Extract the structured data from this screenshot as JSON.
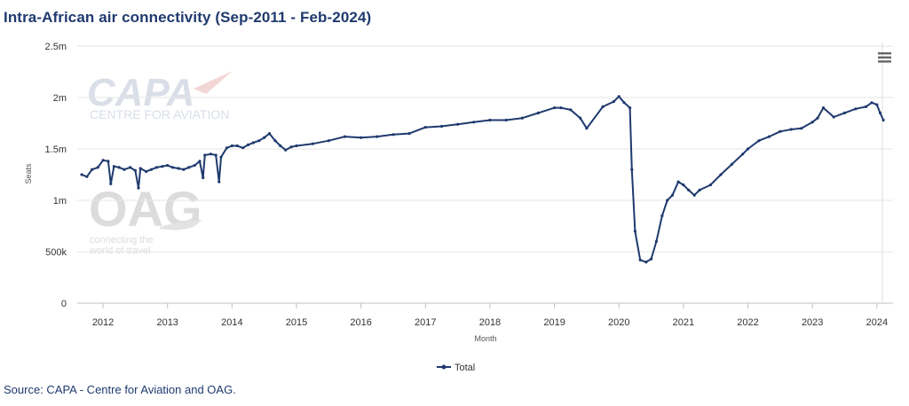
{
  "chart_data": {
    "type": "line",
    "title": "Intra-African air connectivity (Sep-2011 - Feb-2024)",
    "xlabel": "Month",
    "ylabel": "Seats",
    "ylim": [
      0,
      2500000
    ],
    "yticks": [
      {
        "value": 0,
        "label": "0"
      },
      {
        "value": 500000,
        "label": "500k"
      },
      {
        "value": 1000000,
        "label": "1m"
      },
      {
        "value": 1500000,
        "label": "1.5m"
      },
      {
        "value": 2000000,
        "label": "2m"
      },
      {
        "value": 2500000,
        "label": "2.5m"
      }
    ],
    "xlim": [
      2011.6,
      2024.25
    ],
    "xticks": [
      "2012",
      "2013",
      "2014",
      "2015",
      "2016",
      "2017",
      "2018",
      "2019",
      "2020",
      "2021",
      "2022",
      "2023",
      "2024"
    ],
    "grid": true,
    "legend": "bottom-center",
    "series": [
      {
        "name": "Total",
        "color": "#1f3a6e",
        "x": [
          2011.67,
          2011.75,
          2011.83,
          2011.92,
          2012.0,
          2012.08,
          2012.12,
          2012.17,
          2012.25,
          2012.33,
          2012.42,
          2012.5,
          2012.55,
          2012.58,
          2012.67,
          2012.75,
          2012.83,
          2012.92,
          2013.0,
          2013.08,
          2013.17,
          2013.25,
          2013.33,
          2013.42,
          2013.5,
          2013.55,
          2013.58,
          2013.67,
          2013.75,
          2013.8,
          2013.83,
          2013.92,
          2014.0,
          2014.08,
          2014.17,
          2014.25,
          2014.33,
          2014.42,
          2014.5,
          2014.58,
          2014.67,
          2014.75,
          2014.83,
          2014.92,
          2015.0,
          2015.25,
          2015.5,
          2015.75,
          2016.0,
          2016.25,
          2016.5,
          2016.75,
          2017.0,
          2017.25,
          2017.5,
          2017.75,
          2018.0,
          2018.25,
          2018.5,
          2018.75,
          2019.0,
          2019.1,
          2019.25,
          2019.4,
          2019.5,
          2019.75,
          2019.92,
          2020.0,
          2020.08,
          2020.17,
          2020.2,
          2020.25,
          2020.33,
          2020.42,
          2020.5,
          2020.58,
          2020.67,
          2020.75,
          2020.83,
          2020.92,
          2021.0,
          2021.08,
          2021.17,
          2021.25,
          2021.42,
          2021.58,
          2021.75,
          2021.92,
          2022.0,
          2022.17,
          2022.33,
          2022.5,
          2022.67,
          2022.83,
          2023.0,
          2023.08,
          2023.17,
          2023.33,
          2023.5,
          2023.67,
          2023.83,
          2023.92,
          2024.0,
          2024.05,
          2024.1
        ],
        "values": [
          1250000,
          1230000,
          1300000,
          1320000,
          1390000,
          1380000,
          1160000,
          1330000,
          1320000,
          1300000,
          1320000,
          1290000,
          1120000,
          1310000,
          1280000,
          1300000,
          1320000,
          1330000,
          1340000,
          1320000,
          1310000,
          1300000,
          1320000,
          1340000,
          1380000,
          1220000,
          1440000,
          1450000,
          1440000,
          1180000,
          1420000,
          1510000,
          1530000,
          1530000,
          1510000,
          1540000,
          1560000,
          1580000,
          1610000,
          1650000,
          1580000,
          1530000,
          1490000,
          1520000,
          1530000,
          1550000,
          1580000,
          1620000,
          1610000,
          1620000,
          1640000,
          1650000,
          1710000,
          1720000,
          1740000,
          1760000,
          1780000,
          1780000,
          1800000,
          1850000,
          1900000,
          1900000,
          1880000,
          1800000,
          1700000,
          1910000,
          1960000,
          2010000,
          1950000,
          1900000,
          1300000,
          700000,
          420000,
          400000,
          430000,
          600000,
          850000,
          1000000,
          1050000,
          1180000,
          1150000,
          1100000,
          1050000,
          1100000,
          1150000,
          1250000,
          1350000,
          1450000,
          1500000,
          1580000,
          1620000,
          1670000,
          1690000,
          1700000,
          1760000,
          1800000,
          1900000,
          1810000,
          1850000,
          1890000,
          1910000,
          1950000,
          1930000,
          1850000,
          1780000
        ]
      }
    ]
  },
  "source_note": "Source: CAPA - Centre for Aviation and OAG.",
  "watermark": {
    "capa_word": "CAPA",
    "capa_sub": "CENTRE FOR AVIATION",
    "oag_word": "OAG",
    "oag_sub_1": "connecting the",
    "oag_sub_2": "world of travel"
  },
  "menu_icon": "hamburger-menu-icon"
}
